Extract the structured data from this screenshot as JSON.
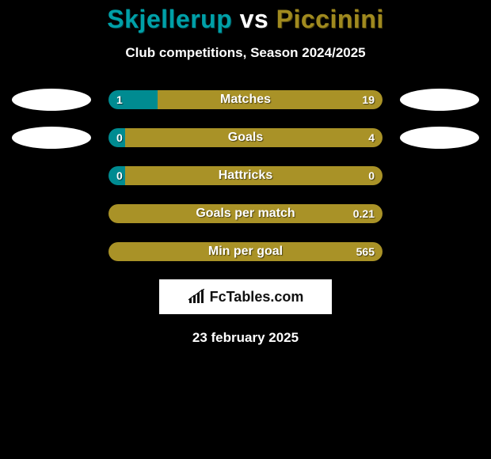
{
  "header": {
    "player1": "Skjellerup",
    "vs": "vs",
    "player2": "Piccinini",
    "subtitle": "Club competitions, Season 2024/2025"
  },
  "colors": {
    "player1": "#008b91",
    "player2": "#a99227",
    "bar_radius": 12
  },
  "stats": [
    {
      "label": "Matches",
      "left_val": "1",
      "right_val": "19",
      "left_pct": 18,
      "show_ellipses": true
    },
    {
      "label": "Goals",
      "left_val": "0",
      "right_val": "4",
      "left_pct": 6,
      "show_ellipses": true
    },
    {
      "label": "Hattricks",
      "left_val": "0",
      "right_val": "0",
      "left_pct": 6,
      "show_ellipses": false
    },
    {
      "label": "Goals per match",
      "left_val": "",
      "right_val": "0.21",
      "left_pct": 0,
      "show_ellipses": false
    },
    {
      "label": "Min per goal",
      "left_val": "",
      "right_val": "565",
      "left_pct": 0,
      "show_ellipses": false
    }
  ],
  "logo": {
    "text": "FcTables.com"
  },
  "footer": {
    "date": "23 february 2025"
  }
}
